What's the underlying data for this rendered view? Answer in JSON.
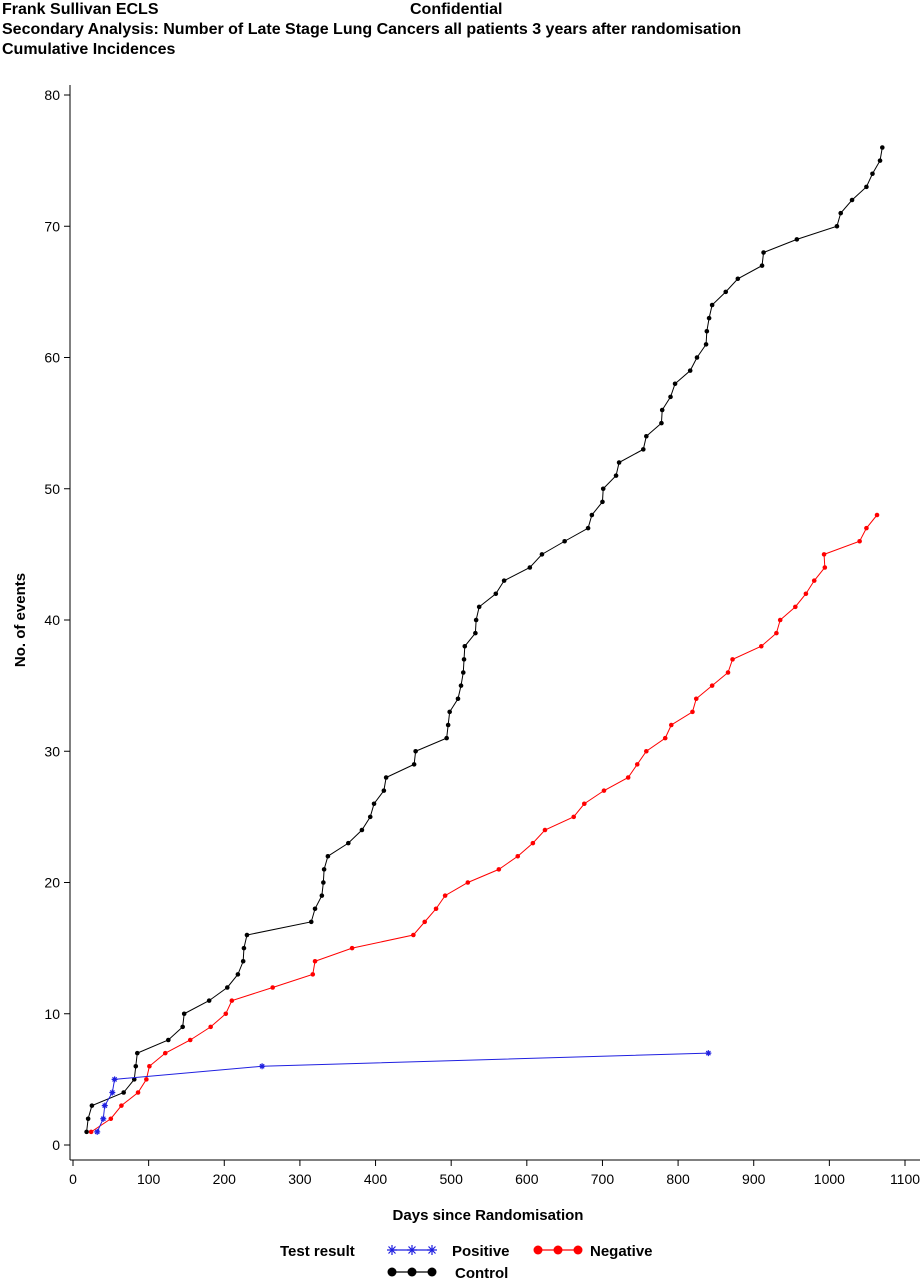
{
  "chart_data": {
    "type": "line",
    "header_left": "Frank Sullivan ECLS",
    "header_center": "Confidential",
    "title": "Secondary Analysis: Number of Late Stage Lung Cancers all patients 3 years after randomisation",
    "subtitle": "Cumulative Incidences",
    "xlabel": "Days since Randomisation",
    "ylabel": "No. of events",
    "legend_title": "Test result",
    "xlim": [
      0,
      1100
    ],
    "xticks": [
      0,
      100,
      200,
      300,
      400,
      500,
      600,
      700,
      800,
      900,
      1000,
      1100
    ],
    "ylim": [
      0,
      80
    ],
    "yticks": [
      0,
      10,
      20,
      30,
      40,
      50,
      60,
      70,
      80
    ],
    "series": [
      {
        "name": "Positive",
        "color": "#2020e0",
        "marker": "star",
        "x": [
          32,
          40,
          42,
          52,
          55,
          250,
          840
        ],
        "values": [
          1,
          2,
          3,
          4,
          5,
          6,
          7
        ]
      },
      {
        "name": "Negative",
        "color": "#ff0000",
        "marker": "dot",
        "x": [
          24,
          50,
          64,
          86,
          97,
          101,
          122,
          155,
          182,
          202,
          210,
          264,
          317,
          320,
          369,
          450,
          465,
          480,
          492,
          522,
          563,
          588,
          608,
          624,
          662,
          676,
          702,
          734,
          746,
          758,
          783,
          791,
          819,
          824,
          845,
          866,
          872,
          910,
          930,
          935,
          955,
          969,
          980,
          994,
          993,
          1040,
          1049,
          1063
        ],
        "values": [
          1,
          2,
          3,
          4,
          5,
          6,
          7,
          8,
          9,
          10,
          11,
          12,
          13,
          14,
          15,
          16,
          17,
          18,
          19,
          20,
          21,
          22,
          23,
          24,
          25,
          26,
          27,
          28,
          29,
          30,
          31,
          32,
          33,
          34,
          35,
          36,
          37,
          38,
          39,
          40,
          41,
          42,
          43,
          44,
          45,
          46,
          47,
          48
        ]
      },
      {
        "name": "Control",
        "color": "#000000",
        "marker": "dot",
        "x": [
          18,
          20,
          25,
          67,
          81,
          83,
          85,
          126,
          145,
          147,
          180,
          204,
          218,
          225,
          226,
          230,
          315,
          320,
          329,
          331,
          332,
          337,
          364,
          382,
          393,
          398,
          411,
          414,
          451,
          453,
          494,
          496,
          498,
          509,
          513,
          516,
          517,
          518,
          532,
          533,
          537,
          559,
          570,
          604,
          620,
          650,
          681,
          686,
          700,
          701,
          718,
          722,
          754,
          758,
          778,
          779,
          790,
          796,
          816,
          825,
          837,
          838,
          841,
          845,
          863,
          879,
          911,
          913,
          957,
          1010,
          1015,
          1030,
          1049,
          1057,
          1067,
          1070
        ],
        "values": [
          1,
          2,
          3,
          4,
          5,
          6,
          7,
          8,
          9,
          10,
          11,
          12,
          13,
          14,
          15,
          16,
          17,
          18,
          19,
          20,
          21,
          22,
          23,
          24,
          25,
          26,
          27,
          28,
          29,
          30,
          31,
          32,
          33,
          34,
          35,
          36,
          37,
          38,
          39,
          40,
          41,
          42,
          43,
          44,
          45,
          46,
          47,
          48,
          49,
          50,
          51,
          52,
          53,
          54,
          55,
          56,
          57,
          58,
          59,
          60,
          61,
          62,
          63,
          64,
          65,
          66,
          67,
          68,
          69,
          70,
          71,
          72,
          73,
          74,
          75,
          76
        ]
      }
    ]
  }
}
